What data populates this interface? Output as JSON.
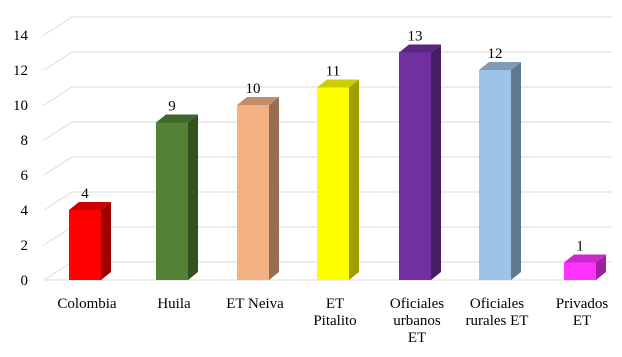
{
  "chart_data": {
    "type": "bar",
    "style": "3d-column",
    "categories": [
      [
        "Colombia"
      ],
      [
        "Huila"
      ],
      [
        "ET Neiva"
      ],
      [
        "ET",
        "Pitalito"
      ],
      [
        "Oficiales",
        "urbanos",
        "ET"
      ],
      [
        "Oficiales",
        "rurales ET"
      ],
      [
        "Privados",
        "ET"
      ]
    ],
    "values": [
      4,
      9,
      10,
      11,
      13,
      12,
      1
    ],
    "value_labels": [
      "4",
      "9",
      "10",
      "11",
      "13",
      "12",
      "1"
    ],
    "colors": [
      "#ff0000",
      "#538135",
      "#f4b183",
      "#ffff00",
      "#7030a0",
      "#9dc3e6",
      "#ff33ff"
    ],
    "title": "",
    "xlabel": "",
    "ylabel": "",
    "ylim": [
      0,
      14
    ],
    "yticks": [
      0,
      2,
      4,
      6,
      8,
      10,
      12,
      14
    ],
    "ytick_labels": [
      "0",
      "2",
      "4",
      "6",
      "8",
      "10",
      "12",
      "14"
    ],
    "grid": true,
    "legend": "none"
  }
}
